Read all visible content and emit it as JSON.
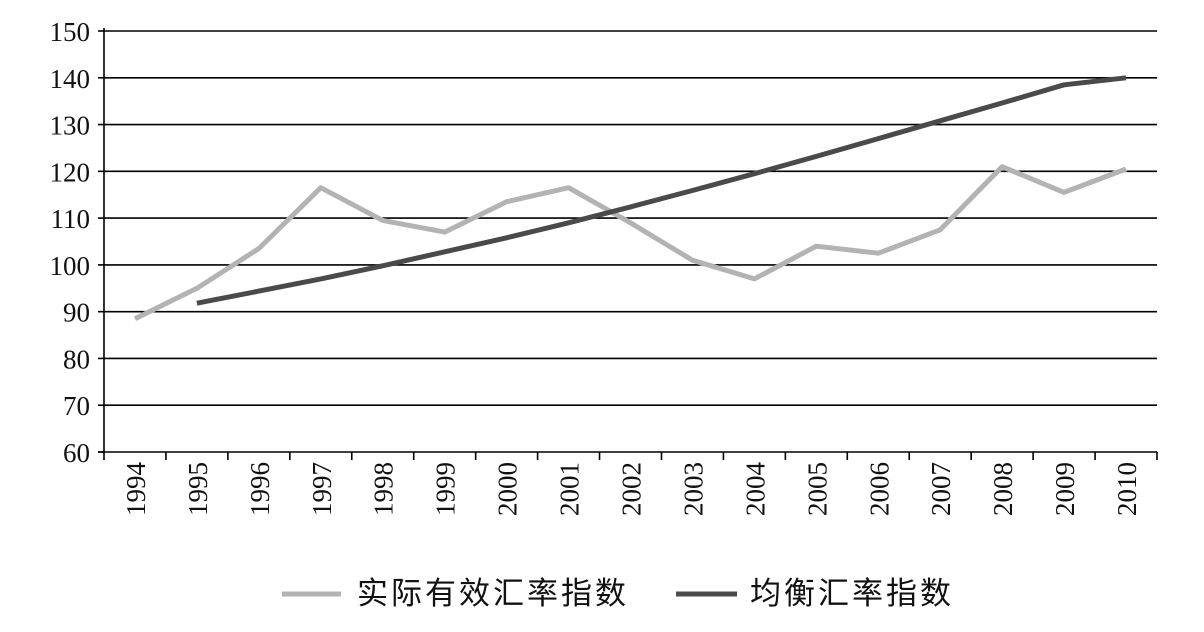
{
  "chart_data": {
    "type": "line",
    "categories": [
      "1994",
      "1995",
      "1996",
      "1997",
      "1998",
      "1999",
      "2000",
      "2001",
      "2002",
      "2003",
      "2004",
      "2005",
      "2006",
      "2007",
      "2008",
      "2009",
      "2010"
    ],
    "series": [
      {
        "name": "实际有效汇率指数",
        "color": "#b3b3b3",
        "values": [
          88.5,
          95,
          103.5,
          116.5,
          109.5,
          107,
          113.5,
          116.5,
          109,
          101,
          97,
          104,
          102.5,
          107.5,
          121,
          115.5,
          120.5
        ]
      },
      {
        "name": "均衡汇率指数",
        "color": "#4a4a4a",
        "values": [
          null,
          91.8,
          94.4,
          97,
          99.8,
          102.8,
          105.8,
          109,
          112.4,
          115.9,
          119.5,
          123.2,
          127,
          130.8,
          134.6,
          138.5,
          140
        ]
      }
    ],
    "ylim": [
      60,
      150
    ],
    "yticks": [
      "60",
      "70",
      "80",
      "90",
      "100",
      "110",
      "120",
      "130",
      "140",
      "150"
    ],
    "grid": true,
    "legend_position": "bottom"
  }
}
